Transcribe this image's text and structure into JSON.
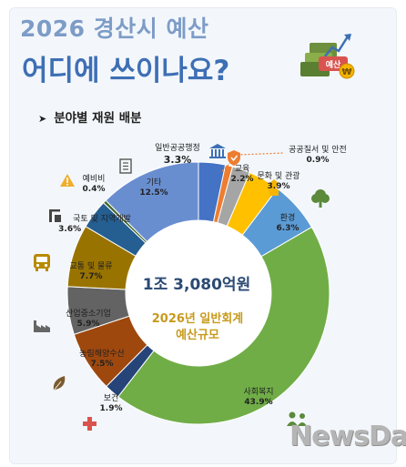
{
  "header": {
    "title_line1": "2026 경산시 예산",
    "title_line2": "어디에 쓰이나요?",
    "subtitle": "분야별 재원 배분",
    "badge_text": "예산"
  },
  "center": {
    "amount": "1조 3,080억원",
    "line1": "2026년 일반회계",
    "line2": "예산규모"
  },
  "watermark": "NewsDa",
  "chart_data": {
    "type": "donut",
    "unit": "%",
    "slices": [
      {
        "label": "일반공공행정",
        "value": 3.3,
        "pct": "3.3%",
        "color": "#4472c4",
        "icon": "building-icon"
      },
      {
        "label": "공공질서 및 안전",
        "value": 0.9,
        "pct": "0.9%",
        "color": "#ed7d31",
        "icon": "shield-icon"
      },
      {
        "label": "교육",
        "value": 2.2,
        "pct": "2.2%",
        "color": "#a5a5a5",
        "icon": "book-icon"
      },
      {
        "label": "문화 및 관광",
        "value": 3.9,
        "pct": "3.9%",
        "color": "#ffc000",
        "icon": "pagoda-icon"
      },
      {
        "label": "환경",
        "value": 6.3,
        "pct": "6.3%",
        "color": "#5b9bd5",
        "icon": "tree-icon"
      },
      {
        "label": "사회복지",
        "value": 43.9,
        "pct": "43.9%",
        "color": "#70ad47",
        "icon": "people-icon"
      },
      {
        "label": "보건",
        "value": 1.9,
        "pct": "1.9%",
        "color": "#264478",
        "icon": "cross-icon"
      },
      {
        "label": "농림해양수산",
        "value": 7.5,
        "pct": "7.5%",
        "color": "#9e480e",
        "icon": "leaf-icon"
      },
      {
        "label": "산업중소기업",
        "value": 5.9,
        "pct": "5.9%",
        "color": "#636363",
        "icon": "factory-icon"
      },
      {
        "label": "교통 및 물류",
        "value": 7.7,
        "pct": "7.7%",
        "color": "#997300",
        "icon": "bus-icon"
      },
      {
        "label": "국토 및 지역개발",
        "value": 3.6,
        "pct": "3.6%",
        "color": "#255e91",
        "icon": "building-crane-icon"
      },
      {
        "label": "예비비",
        "value": 0.4,
        "pct": "0.4%",
        "color": "#43682b",
        "icon": "warning-icon"
      },
      {
        "label": "기타",
        "value": 12.5,
        "pct": "12.5%",
        "color": "#698ed0",
        "icon": "document-icon"
      }
    ]
  }
}
